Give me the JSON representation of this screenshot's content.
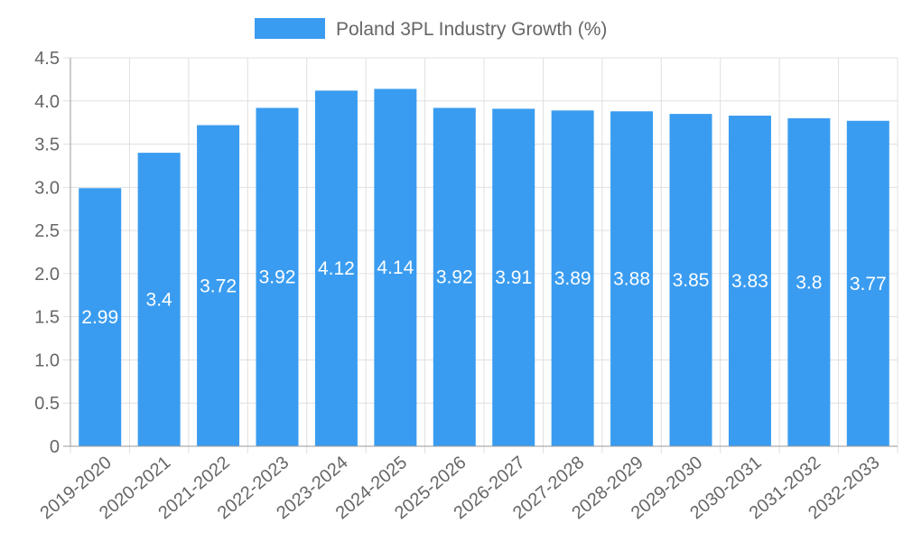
{
  "chart_data": {
    "type": "bar",
    "title": "",
    "xlabel": "",
    "ylabel": "",
    "legend": {
      "label": "Poland 3PL Industry Growth (%)",
      "position": "top-center"
    },
    "categories": [
      "2019-2020",
      "2020-2021",
      "2021-2022",
      "2022-2023",
      "2023-2024",
      "2024-2025",
      "2025-2026",
      "2026-2027",
      "2027-2028",
      "2028-2029",
      "2029-2030",
      "2030-2031",
      "2031-2032",
      "2032-2033"
    ],
    "values": [
      2.99,
      3.4,
      3.72,
      3.92,
      4.12,
      4.14,
      3.92,
      3.91,
      3.89,
      3.88,
      3.85,
      3.83,
      3.8,
      3.77
    ],
    "data_labels": [
      "2.99",
      "3.4",
      "3.72",
      "3.92",
      "4.12",
      "4.14",
      "3.92",
      "3.91",
      "3.89",
      "3.88",
      "3.85",
      "3.83",
      "3.8",
      "3.77"
    ],
    "ylim": [
      0,
      4.5
    ],
    "yticks": [
      "0",
      "0.5",
      "1.0",
      "1.5",
      "2.0",
      "2.5",
      "3.0",
      "3.5",
      "4.0",
      "4.5"
    ],
    "grid": true
  },
  "colors": {
    "bar": "#3a9cf0",
    "grid": "#e0e0e0",
    "axis": "#999999",
    "text": "#666666"
  }
}
